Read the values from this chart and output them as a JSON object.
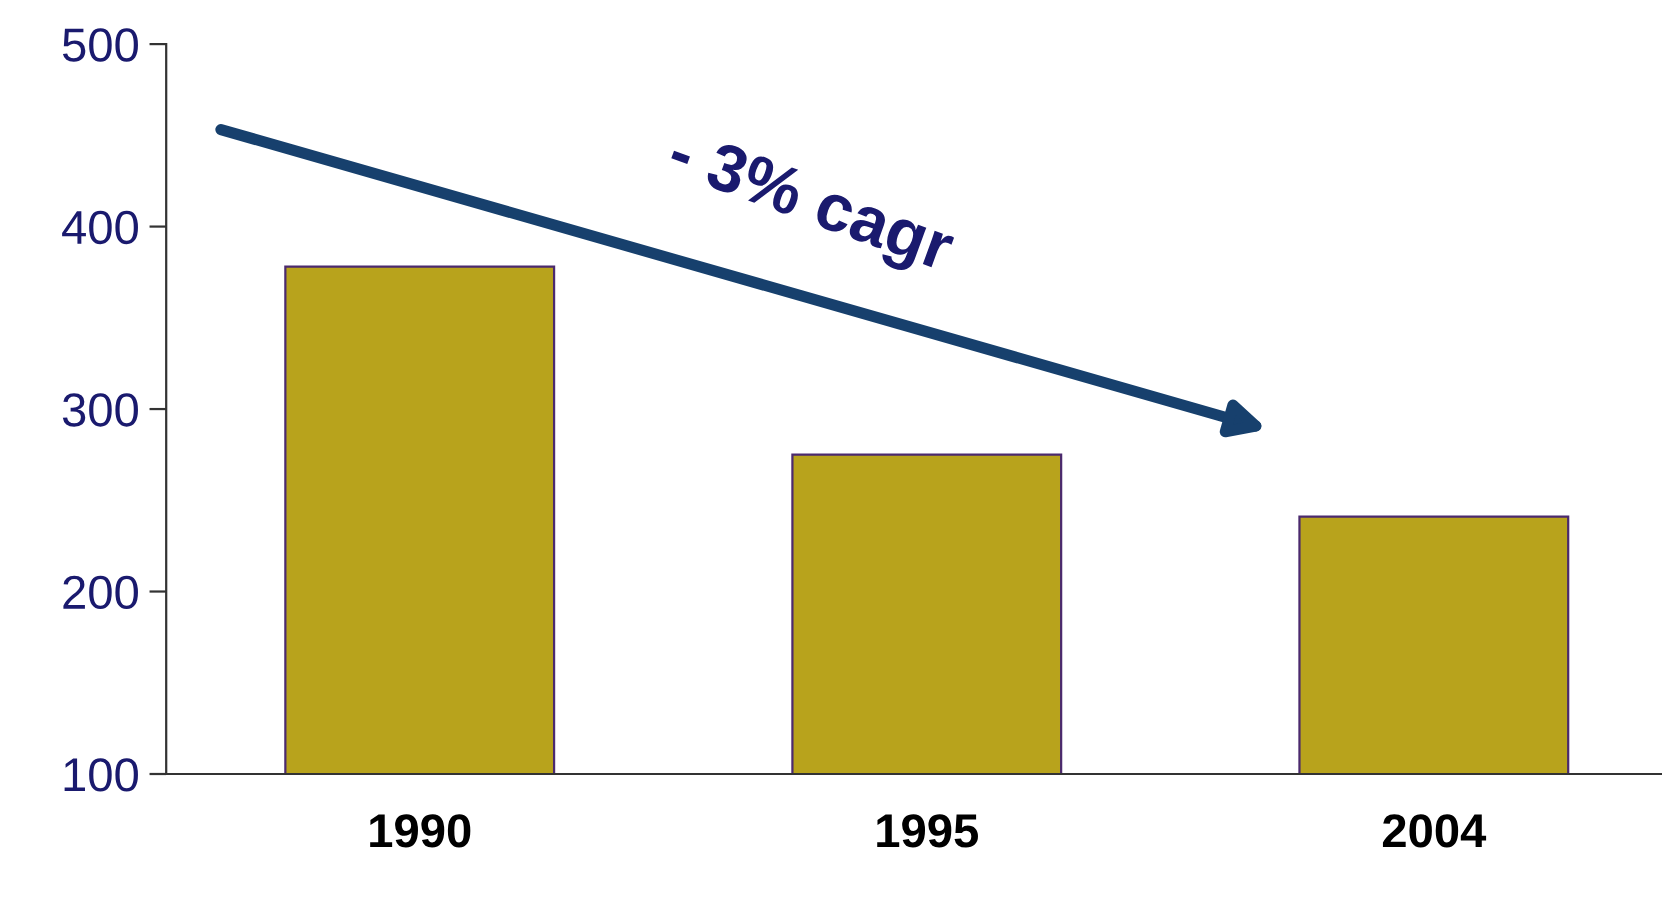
{
  "chart_data": {
    "type": "bar",
    "categories": [
      "1990",
      "1995",
      "2004"
    ],
    "values": [
      378,
      275,
      241
    ],
    "color": "#b8a31c",
    "ylim": [
      100,
      500
    ],
    "yticks": [
      100,
      200,
      300,
      400,
      500
    ],
    "grid": false,
    "legend": false,
    "annotations": [
      "- 3% cagr"
    ]
  }
}
